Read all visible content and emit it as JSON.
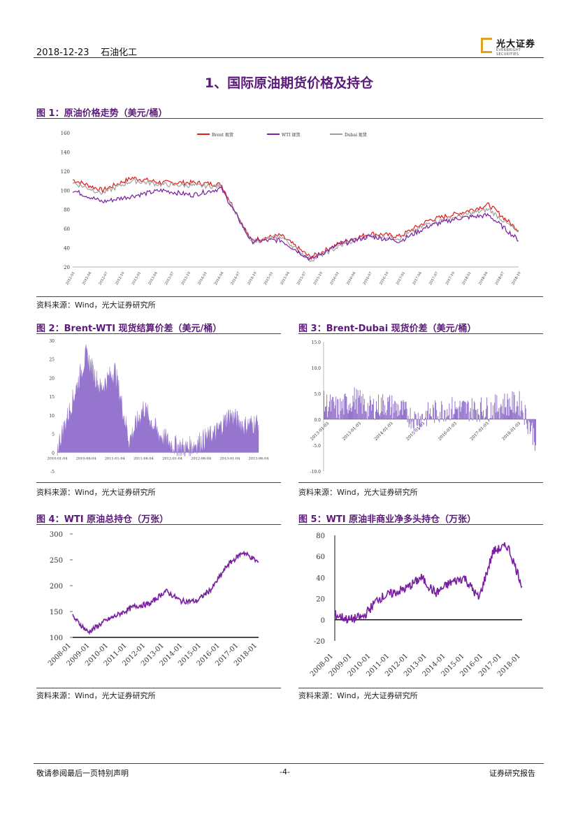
{
  "header": {
    "date": "2018-12-23",
    "category": "石油化工",
    "logo_cn": "光大证券",
    "logo_en": "EVERBRIGHT SECURITIES"
  },
  "section_title": "1、国际原油期货价格及持仓",
  "fig1": {
    "title": "图 1：原油价格走势（美元/桶）",
    "source": "资料来源：Wind，光大证券研究所",
    "legend": [
      "Brent 现货",
      "WTI 现货",
      "Dubai 现货"
    ],
    "yticks": [
      "160",
      "140",
      "120",
      "100",
      "80",
      "60",
      "40",
      "20"
    ]
  },
  "fig2": {
    "title": "图 2：Brent-WTI 现货结算价差（美元/桶）",
    "source": "资料来源：Wind，光大证券研究所",
    "yticks": [
      "30",
      "25",
      "20",
      "15",
      "10",
      "5",
      "0",
      "-5"
    ]
  },
  "fig3": {
    "title": "图 3：Brent-Dubai 现货价差（美元/桶）",
    "source": "资料来源：Wind，光大证券研究所",
    "yticks": [
      "15.0",
      "10.0",
      "5.0",
      "0.0",
      "-5.0",
      "-10.0"
    ],
    "xticks": [
      "2013-01-03",
      "2013-01-03",
      "2014-01-03",
      "2015-01-03",
      "2016-01-03",
      "2017-01-03",
      "2018-01-03"
    ]
  },
  "fig4": {
    "title": "图 4：WTI 原油总持仓（万张）",
    "source": "资料来源：Wind，光大证券研究所",
    "yticks": [
      "300",
      "250",
      "200",
      "150",
      "100"
    ],
    "xticks": [
      "2008-01",
      "2009-01",
      "2010-01",
      "2011-01",
      "2012-01",
      "2013-01",
      "2014-01",
      "2015-01",
      "2016-01",
      "2017-01",
      "2018-01"
    ]
  },
  "fig5": {
    "title": "图 5：WTI 原油非商业净多头持仓（万张）",
    "source": "资料来源：Wind，光大证券研究所",
    "yticks": [
      "80",
      "60",
      "40",
      "20",
      "0",
      "-20"
    ],
    "xticks": [
      "2008-01",
      "2009-01",
      "2010-01",
      "2011-01",
      "2012-01",
      "2013-01",
      "2014-01",
      "2015-01",
      "2016-01",
      "2017-01",
      "2018-01"
    ]
  },
  "footer": {
    "left": "敬请参阅最后一页特别声明",
    "page": "-4-",
    "right": "证券研究报告"
  },
  "colors": {
    "purple": "#7b1fa2",
    "red": "#e31a1c",
    "gray": "#a0a0a0",
    "area": "#9575cd",
    "title": "#5b1a7a"
  },
  "chart_data": [
    {
      "type": "line",
      "title": "图 1：原油价格走势（美元/桶）",
      "ylim": [
        20,
        160
      ],
      "x": [
        "2012-01",
        "2012-07",
        "2013-01",
        "2013-07",
        "2014-01",
        "2014-07",
        "2015-01",
        "2015-07",
        "2016-01",
        "2016-07",
        "2017-01",
        "2017-07",
        "2018-01",
        "2018-07",
        "2018-10",
        "2018-12"
      ],
      "series": [
        {
          "name": "Brent 现货",
          "values": [
            111,
            100,
            113,
            108,
            108,
            106,
            48,
            53,
            30,
            45,
            55,
            52,
            69,
            76,
            85,
            58
          ]
        },
        {
          "name": "WTI 现货",
          "values": [
            100,
            88,
            94,
            100,
            95,
            102,
            47,
            48,
            28,
            44,
            52,
            47,
            63,
            71,
            74,
            48
          ]
        },
        {
          "name": "Dubai 现货",
          "values": [
            108,
            97,
            110,
            106,
            105,
            104,
            46,
            52,
            27,
            42,
            53,
            50,
            66,
            73,
            80,
            56
          ]
        }
      ]
    },
    {
      "type": "area",
      "title": "图 2：Brent-WTI 现货结算价差（美元/桶）",
      "ylim": [
        -5,
        30
      ],
      "x": [
        "2010-01",
        "2011-01",
        "2011-09",
        "2012-01",
        "2012-10",
        "2013-07",
        "2014-01",
        "2015-01",
        "2016-01",
        "2017-01",
        "2017-07",
        "2018-01",
        "2018-06",
        "2018-10",
        "2018-12"
      ],
      "values": [
        1,
        13,
        26,
        17,
        22,
        3,
        12,
        5,
        2,
        1,
        3,
        5,
        10,
        7,
        8
      ]
    },
    {
      "type": "area",
      "title": "图 3：Brent-Dubai 现货价差（美元/桶）",
      "ylim": [
        -10,
        15
      ],
      "x": [
        "2012-01",
        "2012-07",
        "2013-01",
        "2013-07",
        "2014-01",
        "2014-07",
        "2015-01",
        "2015-07",
        "2016-01",
        "2016-07",
        "2017-01",
        "2017-07",
        "2018-01",
        "2018-07",
        "2018-12"
      ],
      "values": [
        3,
        2,
        4,
        2,
        3,
        2,
        0,
        1,
        2,
        2,
        2,
        2,
        3,
        3,
        -4
      ]
    },
    {
      "type": "line",
      "title": "图 4：WTI 原油总持仓（万张）",
      "ylim": [
        100,
        300
      ],
      "x": [
        "2008-01",
        "2009-01",
        "2010-01",
        "2011-01",
        "2012-01",
        "2013-01",
        "2014-01",
        "2015-01",
        "2016-01",
        "2017-01",
        "2018-01",
        "2018-06",
        "2018-12"
      ],
      "series": [
        {
          "values": [
            140,
            110,
            130,
            145,
            160,
            165,
            190,
            170,
            170,
            195,
            240,
            265,
            245
          ]
        }
      ]
    },
    {
      "type": "line",
      "title": "图 5：WTI 原油非商业净多头持仓（万张）",
      "ylim": [
        -20,
        80
      ],
      "x": [
        "2008-01",
        "2009-01",
        "2010-01",
        "2011-01",
        "2012-01",
        "2013-01",
        "2014-01",
        "2015-01",
        "2016-01",
        "2017-01",
        "2017-07",
        "2018-01",
        "2018-06",
        "2018-12"
      ],
      "series": [
        {
          "values": [
            5,
            0,
            3,
            20,
            25,
            30,
            40,
            25,
            35,
            40,
            20,
            65,
            70,
            33
          ]
        }
      ]
    }
  ]
}
